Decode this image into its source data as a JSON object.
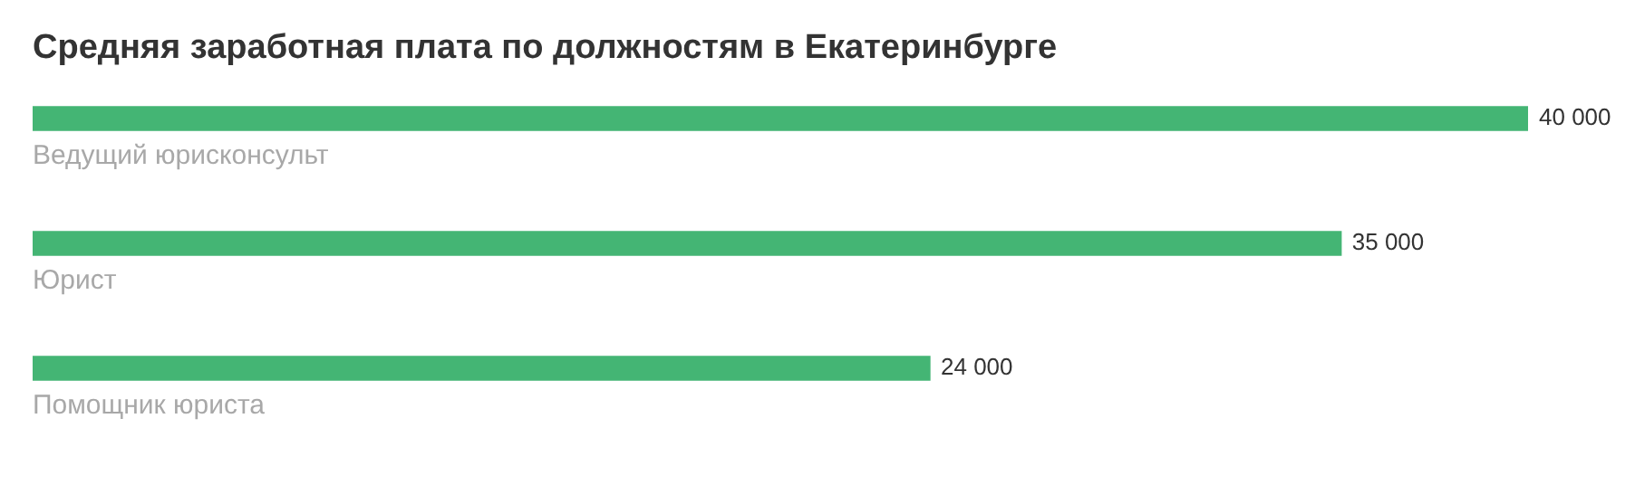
{
  "chart_data": {
    "type": "bar",
    "orientation": "horizontal",
    "title": "Средняя заработная плата по должностям в Екатеринбурге",
    "categories": [
      "Ведущий юрисконсульт",
      "Юрист",
      "Помощник юриста"
    ],
    "values": [
      40000,
      35000,
      24000
    ],
    "color": "#44b574",
    "value_labels": [
      "40 000",
      "35 000",
      "24 000"
    ]
  }
}
